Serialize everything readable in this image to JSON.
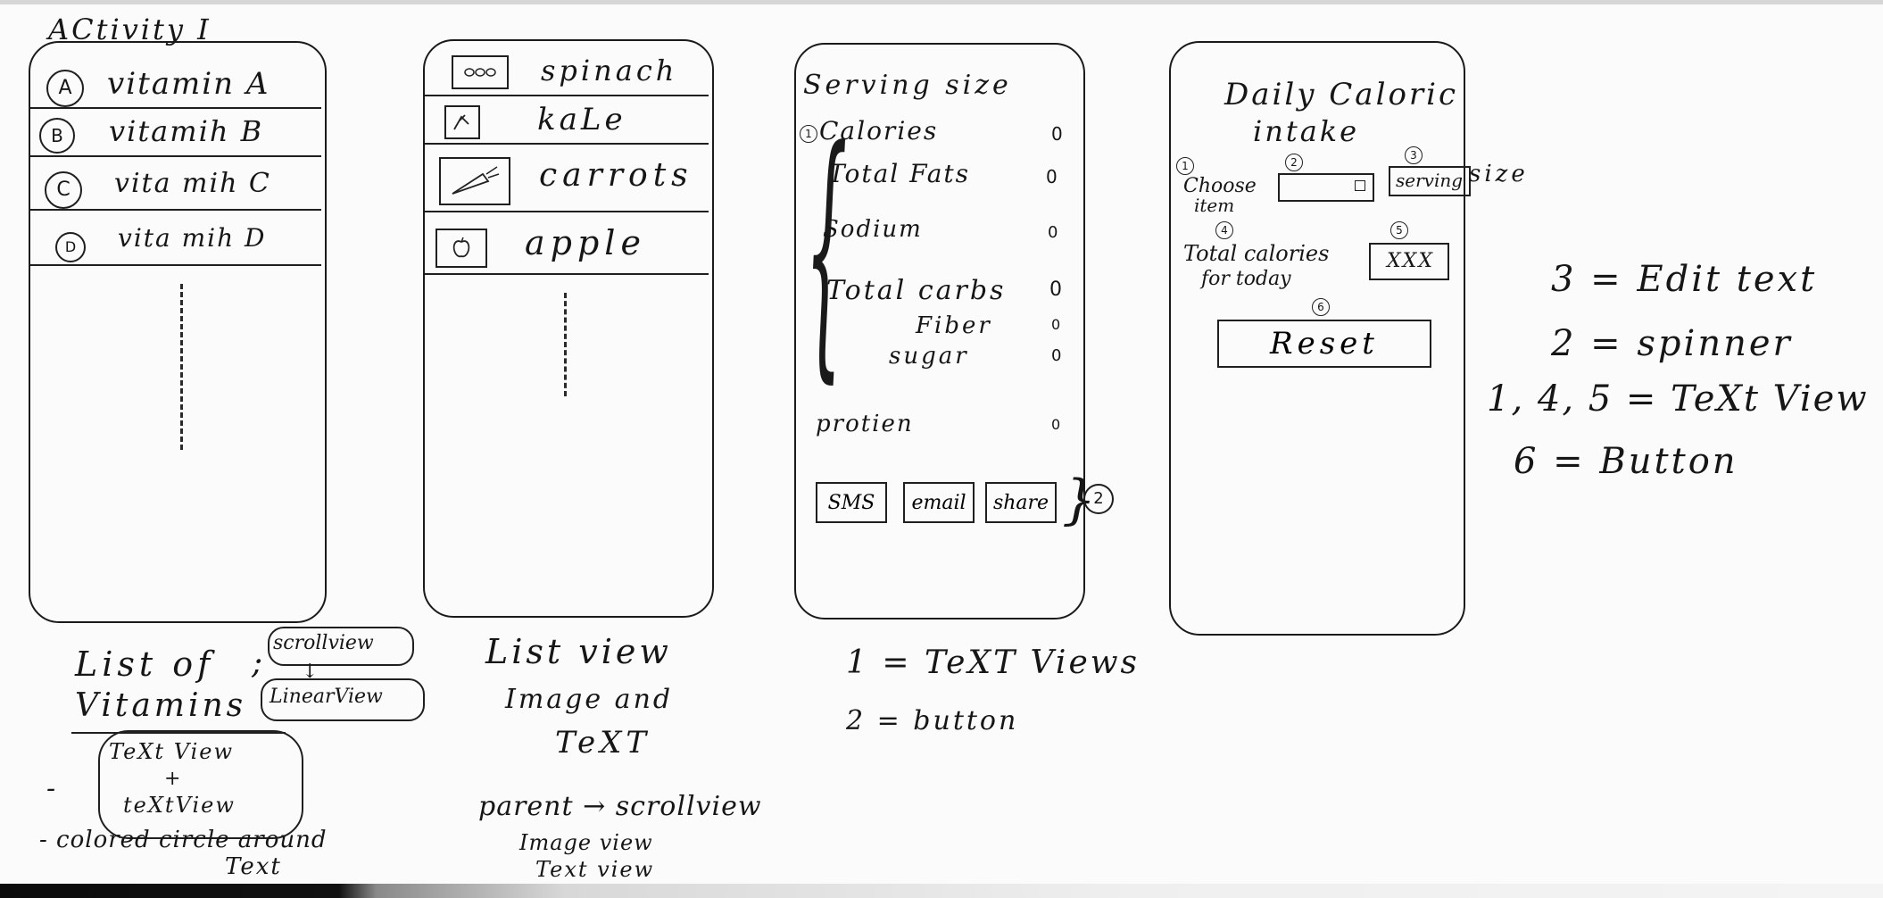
{
  "activity1": {
    "title": "ACtivity I",
    "vitamins": [
      {
        "badge": "A",
        "label": "vitamin A"
      },
      {
        "badge": "B",
        "label": "vitamih B"
      },
      {
        "badge": "C",
        "label": "vita mih C"
      },
      {
        "badge": "D",
        "label": "vita mih D"
      }
    ],
    "caption": {
      "line1": "List of",
      "line2": "Vitamins",
      "scrollview": "scrollview",
      "linearview": "LinearView",
      "tv1": "TeXt View",
      "plus": "+",
      "tv2": "teXtView",
      "dash": "-",
      "note1": "- colored circle around",
      "note2": "Text"
    }
  },
  "activity2": {
    "foods": [
      {
        "icon": "spinach-leaf-icon",
        "label": "spinach"
      },
      {
        "icon": "kale-leaf-icon",
        "label": "kaLe"
      },
      {
        "icon": "carrot-icon",
        "label": "carrots"
      },
      {
        "icon": "apple-icon",
        "label": "apple"
      }
    ],
    "caption": {
      "line1": "List view",
      "line2": "Image and",
      "line3": "TeXT",
      "line4": "parent → scrollview",
      "line5": "Image view",
      "line6": "Text view"
    }
  },
  "activity3": {
    "header": "Serving size",
    "marker": "1",
    "rows": [
      {
        "label": "Calories",
        "value": "0"
      },
      {
        "label": "Total Fats",
        "value": "0"
      },
      {
        "label": "Sodium",
        "value": "0"
      },
      {
        "label": "Total carbs",
        "value": "0"
      },
      {
        "label": "Fiber",
        "value": "0"
      },
      {
        "label": "sugar",
        "value": "0"
      },
      {
        "label": "protien",
        "value": "0"
      }
    ],
    "buttons": [
      "SMS",
      "email",
      "share"
    ],
    "button_marker": "2",
    "legend": {
      "l1": "1 =  TeXT Views",
      "l2": "2 =  button"
    }
  },
  "activity4": {
    "title1": "Daily Caloric",
    "title2": "intake",
    "markers": [
      "1",
      "2",
      "3",
      "4",
      "5",
      "6"
    ],
    "choose1": "Choose",
    "choose2": "item",
    "serving_label": "serving",
    "serving_suffix": "size",
    "total1": "Total calories",
    "total2": "for today",
    "value": "XXX",
    "reset": "Reset"
  },
  "legend": [
    "3  =  Edit  text",
    "2  =  spinner",
    "1, 4, 5 =  TeXt View",
    "6  =  Button"
  ]
}
